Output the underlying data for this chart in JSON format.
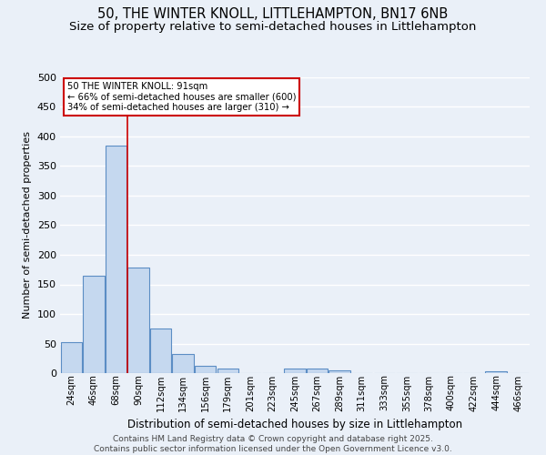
{
  "title1": "50, THE WINTER KNOLL, LITTLEHAMPTON, BN17 6NB",
  "title2": "Size of property relative to semi-detached houses in Littlehampton",
  "xlabel": "Distribution of semi-detached houses by size in Littlehampton",
  "ylabel": "Number of semi-detached properties",
  "categories": [
    "24sqm",
    "46sqm",
    "68sqm",
    "90sqm",
    "112sqm",
    "134sqm",
    "156sqm",
    "179sqm",
    "201sqm",
    "223sqm",
    "245sqm",
    "267sqm",
    "289sqm",
    "311sqm",
    "333sqm",
    "355sqm",
    "378sqm",
    "400sqm",
    "422sqm",
    "444sqm",
    "466sqm"
  ],
  "values": [
    52,
    165,
    384,
    178,
    75,
    33,
    12,
    8,
    0,
    0,
    8,
    8,
    4,
    0,
    0,
    0,
    0,
    0,
    0,
    3,
    0
  ],
  "bar_color": "#c5d8ef",
  "bar_edge_color": "#5b8dc4",
  "subject_line_color": "#cc0000",
  "annotation_line1": "50 THE WINTER KNOLL: 91sqm",
  "annotation_line2": "← 66% of semi-detached houses are smaller (600)",
  "annotation_line3": "34% of semi-detached houses are larger (310) →",
  "annotation_box_color": "#cc0000",
  "annotation_box_bg": "#ffffff",
  "footnote": "Contains HM Land Registry data © Crown copyright and database right 2025.\nContains public sector information licensed under the Open Government Licence v3.0.",
  "ylim": [
    0,
    500
  ],
  "yticks": [
    0,
    50,
    100,
    150,
    200,
    250,
    300,
    350,
    400,
    450,
    500
  ],
  "bg_color": "#eaf0f8",
  "grid_color": "#ffffff",
  "title1_fontsize": 10.5,
  "title2_fontsize": 9.5,
  "footnote_fontsize": 6.5
}
